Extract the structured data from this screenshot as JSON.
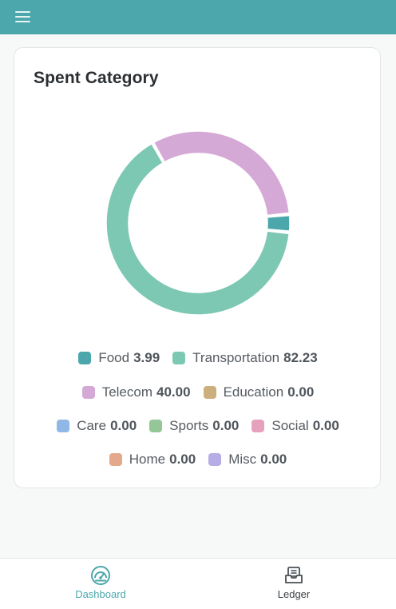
{
  "header": {
    "menu_icon": "hamburger-menu-icon"
  },
  "card": {
    "title": "Spent Category"
  },
  "chart_data": {
    "type": "pie",
    "categories": [
      "Food",
      "Transportation",
      "Telecom",
      "Education",
      "Care",
      "Sports",
      "Social",
      "Home",
      "Misc"
    ],
    "values": [
      3.99,
      82.23,
      40.0,
      0.0,
      0.0,
      0.0,
      0.0,
      0.0,
      0.0
    ],
    "display_values": [
      "3.99",
      "82.23",
      "40.00",
      "0.00",
      "0.00",
      "0.00",
      "0.00",
      "0.00",
      "0.00"
    ],
    "colors": [
      "#4ba7ab",
      "#7cc8b2",
      "#d5a9d6",
      "#cdaf7e",
      "#8fb8e6",
      "#95c698",
      "#e6a2bd",
      "#e4a98a",
      "#b5ade3"
    ],
    "donut": true,
    "legend_position": "bottom"
  },
  "bottom_nav": {
    "items": [
      {
        "label": "Dashboard",
        "icon": "speedometer-icon",
        "active": true
      },
      {
        "label": "Ledger",
        "icon": "ledger-inbox-icon",
        "active": false
      }
    ]
  }
}
